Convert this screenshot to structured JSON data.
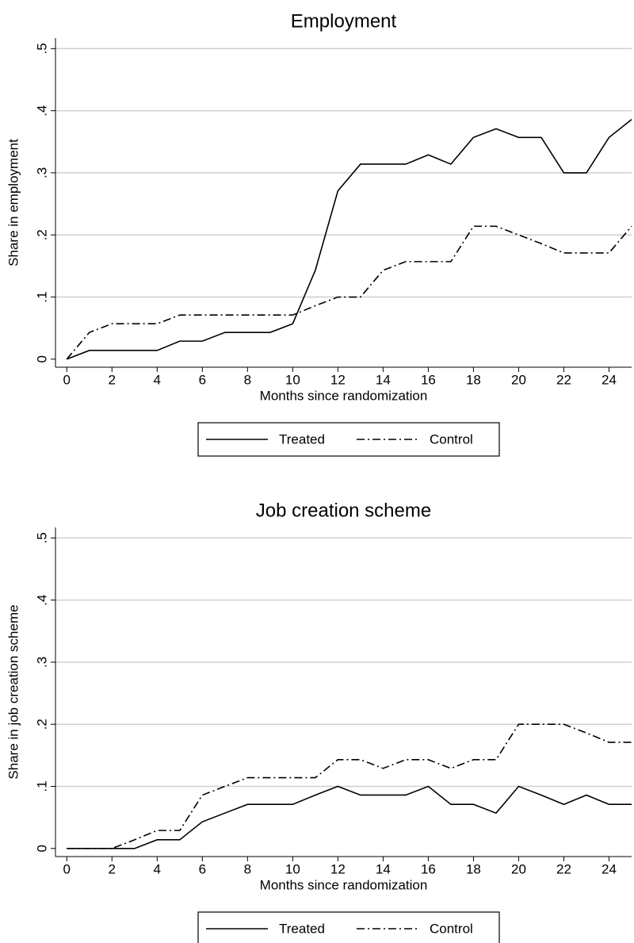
{
  "chart_data": [
    {
      "type": "line",
      "title": "Employment",
      "xlabel": "Months since randomization",
      "ylabel": "Share in employment",
      "x": [
        0,
        1,
        2,
        3,
        4,
        5,
        6,
        7,
        8,
        9,
        10,
        11,
        12,
        13,
        14,
        15,
        16,
        17,
        18,
        19,
        20,
        21,
        22,
        23,
        24,
        25
      ],
      "series": [
        {
          "name": "Treated",
          "color": "#000000",
          "style": "solid",
          "values": [
            0,
            0.014,
            0.014,
            0.014,
            0.014,
            0.029,
            0.029,
            0.043,
            0.043,
            0.043,
            0.057,
            0.143,
            0.271,
            0.314,
            0.314,
            0.314,
            0.329,
            0.314,
            0.357,
            0.371,
            0.357,
            0.357,
            0.3,
            0.3,
            0.357,
            0.386
          ]
        },
        {
          "name": "Control",
          "color": "#000000",
          "style": "dashdot",
          "values": [
            0,
            0.043,
            0.057,
            0.057,
            0.057,
            0.071,
            0.071,
            0.071,
            0.071,
            0.071,
            0.071,
            0.086,
            0.1,
            0.1,
            0.143,
            0.157,
            0.157,
            0.157,
            0.214,
            0.214,
            0.2,
            0.186,
            0.171,
            0.171,
            0.171,
            0.214
          ]
        }
      ],
      "xlim": [
        -0.5,
        25
      ],
      "ylim": [
        -0.013,
        0.517
      ],
      "xticks": [
        0,
        2,
        4,
        6,
        8,
        10,
        12,
        14,
        16,
        18,
        20,
        22,
        24
      ],
      "yticks": [
        0,
        {
          "value": 0.1,
          "label": ".1"
        },
        {
          "value": 0.2,
          "label": ".2"
        },
        {
          "value": 0.3,
          "label": ".3"
        },
        {
          "value": 0.4,
          "label": ".4"
        },
        {
          "value": 0.5,
          "label": ".5"
        }
      ],
      "grid": true,
      "legend": "bottom"
    },
    {
      "type": "line",
      "title": "Job creation scheme",
      "xlabel": "Months since randomization",
      "ylabel": "Share in job creation scheme",
      "x": [
        0,
        1,
        2,
        3,
        4,
        5,
        6,
        7,
        8,
        9,
        10,
        11,
        12,
        13,
        14,
        15,
        16,
        17,
        18,
        19,
        20,
        21,
        22,
        23,
        24,
        25
      ],
      "series": [
        {
          "name": "Treated",
          "color": "#000000",
          "style": "solid",
          "values": [
            0,
            0,
            0,
            0,
            0.014,
            0.014,
            0.043,
            0.057,
            0.071,
            0.071,
            0.071,
            0.086,
            0.1,
            0.086,
            0.086,
            0.086,
            0.1,
            0.071,
            0.071,
            0.057,
            0.1,
            0.086,
            0.071,
            0.086,
            0.071,
            0.071
          ]
        },
        {
          "name": "Control",
          "color": "#000000",
          "style": "dashdot",
          "values": [
            0,
            0,
            0,
            0.014,
            0.029,
            0.029,
            0.086,
            0.1,
            0.114,
            0.114,
            0.114,
            0.114,
            0.143,
            0.143,
            0.129,
            0.143,
            0.143,
            0.129,
            0.143,
            0.143,
            0.2,
            0.2,
            0.2,
            0.186,
            0.171,
            0.171
          ]
        }
      ],
      "xlim": [
        -0.5,
        25
      ],
      "ylim": [
        -0.013,
        0.517
      ],
      "xticks": [
        0,
        2,
        4,
        6,
        8,
        10,
        12,
        14,
        16,
        18,
        20,
        22,
        24
      ],
      "yticks": [
        0,
        {
          "value": 0.1,
          "label": ".1"
        },
        {
          "value": 0.2,
          "label": ".2"
        },
        {
          "value": 0.3,
          "label": ".3"
        },
        {
          "value": 0.4,
          "label": ".4"
        },
        {
          "value": 0.5,
          "label": ".5"
        }
      ],
      "grid": true,
      "legend": "bottom"
    }
  ]
}
